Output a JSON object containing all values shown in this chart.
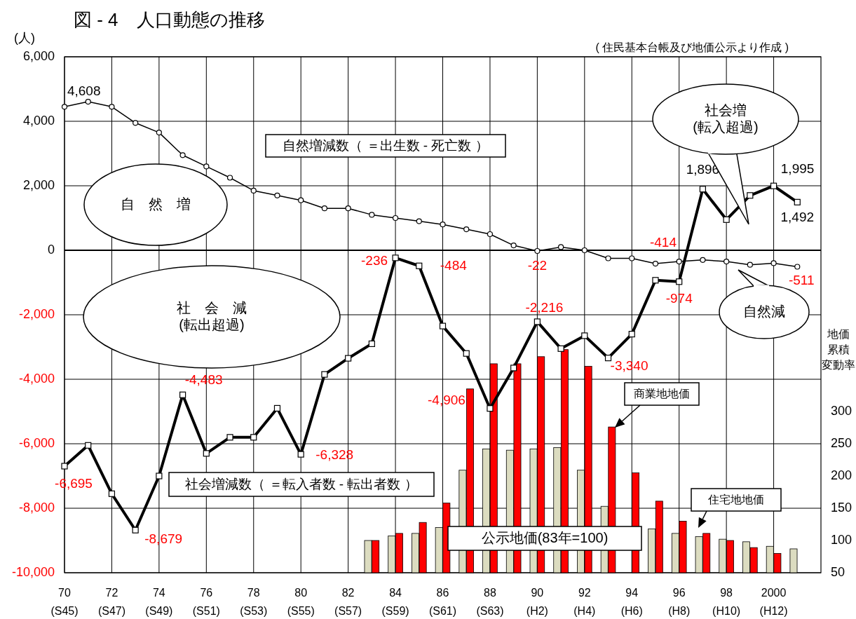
{
  "chart_data": {
    "type": "line",
    "title": "図 - 4　人口動態の推移",
    "ylabel": "(人)",
    "y2label": "地価累積変動率",
    "annotations": [
      "( 住民基本台帳及び地価公示より作成 )",
      "自　然　増",
      "社　会　減\n(転出超過)",
      "社会増\n(転入超過)",
      "自然減",
      "公示地価(83年=100)"
    ],
    "categories": [
      "70\n(S45)",
      null,
      "72\n(S47)",
      null,
      "74\n(S49)",
      null,
      "76\n(S51)",
      null,
      "78\n(S53)",
      null,
      "80\n(S55)",
      null,
      "82\n(S57)",
      null,
      "84\n(S59)",
      null,
      "86\n(S61)",
      null,
      "88\n(S63)",
      null,
      "90\n(H2)",
      null,
      "92\n(H4)",
      null,
      "94\n(H6)",
      null,
      "96\n(H8)",
      null,
      "98\n(H10)",
      null,
      "2000\n(H12)",
      null
    ],
    "ylim": [
      -10000,
      6000
    ],
    "yticks": [
      {
        "value": -10000,
        "label": "-10,000"
      },
      {
        "value": -8000,
        "label": "-8,000"
      },
      {
        "value": -6000,
        "label": "-6,000"
      },
      {
        "value": -4000,
        "label": "-4,000"
      },
      {
        "value": -2000,
        "label": "-2,000"
      },
      0,
      {
        "value": 2000,
        "label": "2,000"
      },
      {
        "value": 4000,
        "label": "4,000"
      },
      {
        "value": 6000,
        "label": "6,000"
      }
    ],
    "y2lim": [
      50,
      850
    ],
    "y2ticks": [
      50,
      100,
      150,
      200,
      250,
      300
    ],
    "grid": true,
    "line_style": "solid",
    "ref_lines": [
      {
        "axis": "y",
        "value": 0,
        "color": "#000000"
      }
    ],
    "series": [
      {
        "name": "住宅地地価",
        "type": "bar",
        "axis": "y2",
        "color": "#dcdcc0",
        "values": [
          null,
          null,
          null,
          null,
          null,
          null,
          null,
          null,
          null,
          null,
          null,
          null,
          null,
          100,
          107,
          111,
          120,
          209,
          242,
          240,
          242,
          244,
          209,
          153,
          null,
          118,
          111,
          106,
          102,
          98,
          91,
          87
        ]
      },
      {
        "name": "商業地地価",
        "type": "bar",
        "axis": "y2",
        "color": "#ff0000",
        "values": [
          null,
          null,
          null,
          null,
          null,
          null,
          null,
          null,
          null,
          null,
          null,
          null,
          null,
          100,
          111,
          128,
          158,
          335,
          374,
          374,
          385,
          396,
          370,
          276,
          205,
          161,
          130,
          111,
          100,
          89,
          80,
          null
        ]
      },
      {
        "name": "自然増減数（ ＝出生数 - 死亡数 ）",
        "marker": "circle",
        "color": "#000000",
        "values": [
          4450,
          4608,
          4450,
          3950,
          3650,
          2950,
          2600,
          2250,
          1850,
          1700,
          1550,
          1300,
          1300,
          1100,
          1000,
          900,
          800,
          650,
          500,
          150,
          -22,
          100,
          0,
          -250,
          -250,
          -414,
          -350,
          -300,
          -350,
          -450,
          -400,
          -511
        ],
        "value_labels": [
          null,
          "4,608",
          null,
          null,
          null,
          null,
          null,
          null,
          null,
          null,
          null,
          null,
          null,
          null,
          null,
          null,
          null,
          null,
          null,
          null,
          "-22",
          null,
          null,
          null,
          null,
          "-414",
          null,
          null,
          null,
          null,
          null,
          "-511"
        ]
      },
      {
        "name": "社会増減数（ ＝転入者数 - 転出者数 ）",
        "marker": "square",
        "color": "#000000",
        "values": [
          -6695,
          -6050,
          -7550,
          -8679,
          -7000,
          -4483,
          -6300,
          -5800,
          -5800,
          -4900,
          -6328,
          -3850,
          -3350,
          -2900,
          -236,
          -484,
          -2350,
          -3200,
          -4906,
          -3650,
          -2216,
          -3050,
          -2650,
          -3340,
          -2600,
          -930,
          -974,
          1896,
          950,
          1700,
          1995,
          1492
        ],
        "value_labels": [
          "-6,695",
          null,
          null,
          "-8,679",
          null,
          "-4,483",
          null,
          null,
          null,
          null,
          "-6,328",
          null,
          null,
          null,
          "-236",
          "-484",
          null,
          null,
          "-4,906",
          null,
          "-2,216",
          null,
          null,
          "-3,340",
          null,
          null,
          "-974",
          "1,896",
          null,
          null,
          "1,995",
          "1,492"
        ]
      }
    ]
  }
}
